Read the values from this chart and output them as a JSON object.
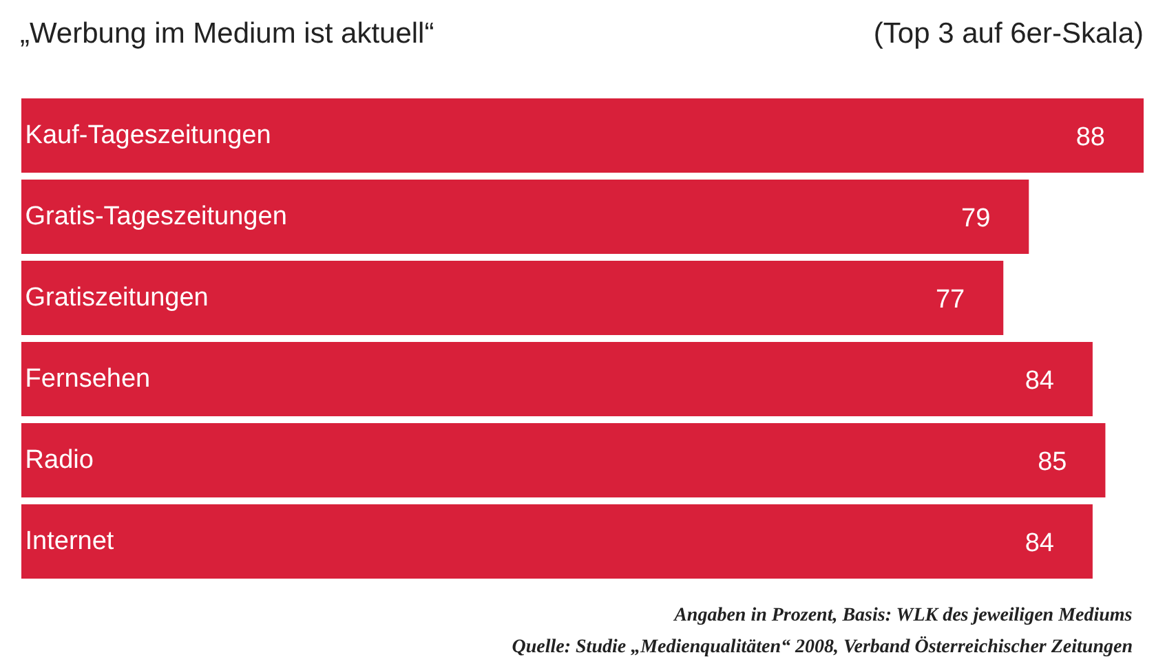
{
  "chart_data": {
    "type": "bar",
    "orientation": "horizontal",
    "title": "„Werbung im Medium ist aktuell“",
    "subtitle": "(Top 3 auf 6er-Skala)",
    "categories": [
      "Kauf-Tageszeitungen",
      "Gratis-Tageszeitungen",
      "Gratiszeitungen",
      "Fernsehen",
      "Radio",
      "Internet"
    ],
    "values": [
      88,
      79,
      77,
      84,
      85,
      84
    ],
    "color": "#d8203a",
    "data_labels": true,
    "annotations": [
      "Angaben in Prozent, Basis: WLK des jeweiligen Mediums",
      "Quelle: Studie „Medienqualitäten“ 2008, Verband Österreichischer Zeitungen"
    ]
  }
}
